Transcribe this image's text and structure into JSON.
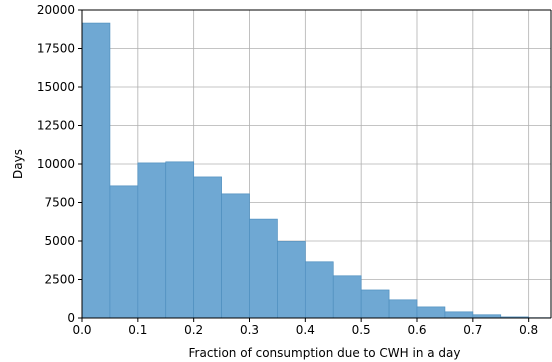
{
  "chart_data": {
    "type": "bar",
    "title": "",
    "xlabel": "Fraction of consumption due to CWH in a day",
    "ylabel": "Days",
    "bin_width": 0.05,
    "bin_starts": [
      0.0,
      0.05,
      0.1,
      0.15,
      0.2,
      0.25,
      0.3,
      0.35,
      0.4,
      0.45,
      0.5,
      0.55,
      0.6,
      0.65,
      0.7,
      0.75,
      0.8
    ],
    "values": [
      19150,
      8580,
      10070,
      10140,
      9160,
      8060,
      6420,
      4970,
      3650,
      2740,
      1820,
      1180,
      720,
      400,
      210,
      70,
      20
    ],
    "xlim": [
      0.0,
      0.84
    ],
    "ylim": [
      0,
      20000
    ],
    "x_ticks": [
      "0.0",
      "0.1",
      "0.2",
      "0.3",
      "0.4",
      "0.5",
      "0.6",
      "0.7",
      "0.8"
    ],
    "y_ticks": [
      "0",
      "2500",
      "5000",
      "7500",
      "10000",
      "12500",
      "15000",
      "17500",
      "20000"
    ],
    "grid": true,
    "bar_color": "#6fa8d3",
    "bar_edge_color": "#4f8fbf",
    "grid_color": "#b0b0b0"
  }
}
